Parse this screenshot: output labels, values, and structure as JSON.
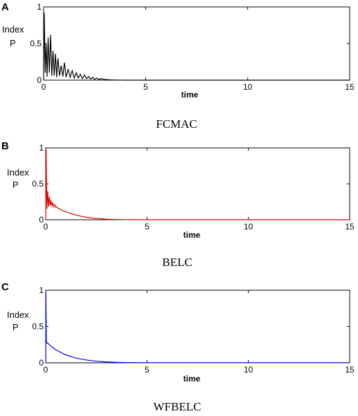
{
  "chart_data": [
    {
      "type": "line",
      "panel": "A",
      "caption": "FCMAC",
      "xlabel": "time",
      "ylabel": [
        "Index",
        "P"
      ],
      "xlim": [
        0,
        15
      ],
      "ylim": [
        0,
        1
      ],
      "xticks": [
        "0",
        "5",
        "10",
        "15"
      ],
      "yticks": [
        "0",
        "0.5",
        "1"
      ],
      "color": "#000000",
      "series": [
        {
          "x": [
            0,
            0.03,
            0.08,
            0.12,
            0.17,
            0.22,
            0.28,
            0.34,
            0.4,
            0.46,
            0.52,
            0.58,
            0.64,
            0.7,
            0.78,
            0.86,
            0.94,
            1.02,
            1.1,
            1.2,
            1.3,
            1.4,
            1.5,
            1.6,
            1.7,
            1.8,
            1.9,
            2.0,
            2.1,
            2.2,
            2.3,
            2.4,
            2.5,
            2.6,
            2.7,
            2.8,
            3.0,
            3.2,
            3.5,
            4.0,
            5,
            8,
            12,
            15
          ],
          "y": [
            0,
            0.92,
            0.1,
            0.5,
            0.05,
            0.58,
            0.1,
            0.62,
            0.06,
            0.4,
            0.06,
            0.36,
            0.04,
            0.3,
            0.06,
            0.2,
            0.05,
            0.24,
            0.04,
            0.15,
            0.04,
            0.13,
            0.03,
            0.1,
            0.03,
            0.08,
            0.02,
            0.07,
            0.02,
            0.05,
            0.015,
            0.04,
            0.01,
            0.03,
            0.01,
            0.02,
            0.01,
            0.005,
            0.002,
            0,
            0,
            0,
            0,
            0
          ]
        }
      ]
    },
    {
      "type": "line",
      "panel": "B",
      "caption": "BELC",
      "xlabel": "time",
      "ylabel": [
        "Index",
        "P"
      ],
      "xlim": [
        0,
        15
      ],
      "ylim": [
        0,
        1
      ],
      "xticks": [
        "0",
        "5",
        "10",
        "15"
      ],
      "yticks": [
        "0",
        "0.5",
        "1"
      ],
      "color": "#e00000",
      "series": [
        {
          "x": [
            0,
            0.02,
            0.06,
            0.1,
            0.14,
            0.18,
            0.22,
            0.26,
            0.3,
            0.35,
            0.4,
            0.45,
            0.5,
            0.55,
            0.6,
            0.7,
            0.8,
            1.0,
            1.2,
            1.5,
            1.8,
            2.1,
            2.5,
            3.0,
            3.5,
            4.0,
            5,
            8,
            12,
            15
          ],
          "y": [
            0,
            0.98,
            0.15,
            0.4,
            0.18,
            0.32,
            0.2,
            0.27,
            0.19,
            0.24,
            0.18,
            0.21,
            0.17,
            0.18,
            0.16,
            0.15,
            0.13,
            0.11,
            0.09,
            0.065,
            0.045,
            0.03,
            0.018,
            0.008,
            0.003,
            0.001,
            0,
            0,
            0,
            0
          ]
        }
      ]
    },
    {
      "type": "line",
      "panel": "C",
      "caption": "WFBELC",
      "xlabel": "time",
      "ylabel": [
        "Index",
        "P"
      ],
      "xlim": [
        0,
        15
      ],
      "ylim": [
        0,
        1
      ],
      "xticks": [
        "0",
        "5",
        "10",
        "15"
      ],
      "yticks": [
        "0",
        "0.5",
        "1"
      ],
      "color": "#0000e0",
      "series": [
        {
          "x": [
            0,
            0.01,
            0.03,
            0.06,
            0.1,
            0.2,
            0.3,
            0.4,
            0.5,
            0.7,
            0.9,
            1.1,
            1.3,
            1.5,
            1.8,
            2.1,
            2.5,
            3.0,
            3.5,
            4.0,
            5,
            8,
            12,
            15
          ],
          "y": [
            0,
            0.98,
            0.3,
            0.27,
            0.27,
            0.245,
            0.22,
            0.2,
            0.18,
            0.15,
            0.12,
            0.1,
            0.08,
            0.065,
            0.048,
            0.035,
            0.022,
            0.012,
            0.006,
            0.003,
            0.001,
            0.001,
            0.001,
            0.001
          ]
        }
      ]
    }
  ]
}
